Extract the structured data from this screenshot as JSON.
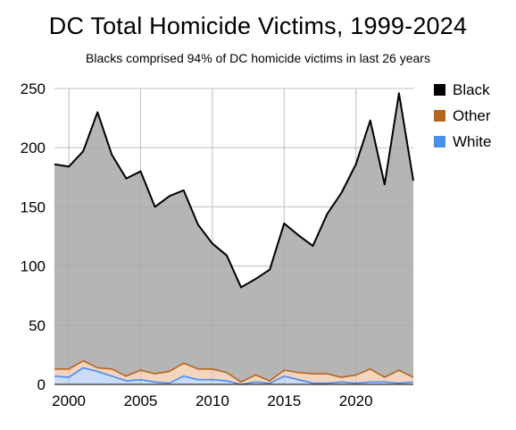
{
  "chart_data": {
    "type": "area",
    "stacked": true,
    "title": "DC Total Homicide Victims, 1999-2024",
    "subtitle": "Blacks comprised 94% of DC homicide victims in last 26 years",
    "xlabel": "",
    "ylabel": "",
    "xlim": [
      1999,
      2024
    ],
    "ylim": [
      0,
      250
    ],
    "x_ticks": [
      2000,
      2005,
      2010,
      2015,
      2020
    ],
    "y_ticks": [
      0,
      50,
      100,
      150,
      200,
      250
    ],
    "grid": true,
    "legend_position": "top-right",
    "x": [
      1999,
      2000,
      2001,
      2002,
      2003,
      2004,
      2005,
      2006,
      2007,
      2008,
      2009,
      2010,
      2011,
      2012,
      2013,
      2014,
      2015,
      2016,
      2017,
      2018,
      2019,
      2020,
      2021,
      2022,
      2023,
      2024
    ],
    "series": [
      {
        "name": "White",
        "color": "#4a8ef0",
        "fill": "#c9dcf7",
        "values": [
          7,
          6,
          14,
          11,
          7,
          3,
          4,
          2,
          1,
          7,
          4,
          4,
          3,
          0,
          2,
          1,
          7,
          4,
          1,
          1,
          2,
          1,
          2,
          2,
          1,
          2
        ]
      },
      {
        "name": "Other",
        "color": "#b8651b",
        "fill": "#f2d4bf",
        "values": [
          6,
          7,
          6,
          3,
          6,
          4,
          8,
          7,
          10,
          11,
          9,
          9,
          7,
          2,
          6,
          2,
          5,
          6,
          8,
          8,
          4,
          7,
          11,
          4,
          11,
          4
        ]
      },
      {
        "name": "Black",
        "color": "#000000",
        "fill": "#b5b5b5",
        "values": [
          173,
          171,
          177,
          216,
          181,
          167,
          168,
          141,
          148,
          146,
          122,
          106,
          99,
          80,
          81,
          94,
          124,
          116,
          108,
          135,
          156,
          178,
          210,
          163,
          234,
          166
        ]
      }
    ]
  }
}
